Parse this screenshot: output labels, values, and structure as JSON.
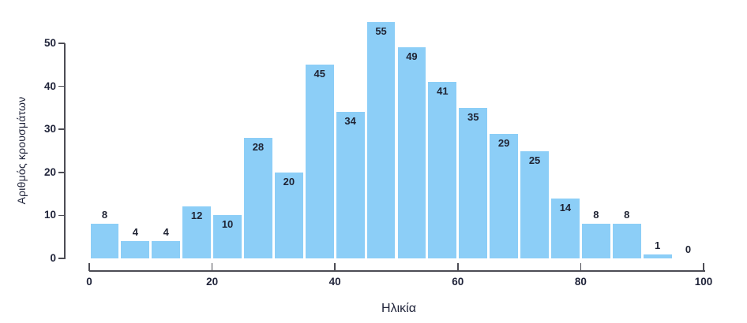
{
  "chart_data": {
    "type": "bar",
    "subtype": "histogram",
    "title": "",
    "xlabel": "Ηλικία",
    "ylabel": "Αριθμός κρουσμάτων",
    "bin_edges": [
      0,
      5,
      10,
      15,
      20,
      25,
      30,
      35,
      40,
      45,
      50,
      55,
      60,
      65,
      70,
      75,
      80,
      85,
      90,
      95,
      100
    ],
    "values": [
      8,
      4,
      4,
      12,
      10,
      28,
      20,
      45,
      34,
      55,
      49,
      41,
      35,
      29,
      25,
      14,
      8,
      8,
      1,
      0
    ],
    "bar_value_labels": [
      "8",
      "4",
      "4",
      "12",
      "10",
      "28",
      "20",
      "45",
      "34",
      "55",
      "49",
      "41",
      "35",
      "29",
      "25",
      "14",
      "8",
      "8",
      "1",
      "0"
    ],
    "x_ticks": [
      0,
      20,
      40,
      60,
      80,
      100
    ],
    "y_ticks": [
      0,
      10,
      20,
      30,
      40,
      50
    ],
    "xlim": [
      0,
      100
    ],
    "ylim": [
      0,
      50
    ],
    "grid": false,
    "legend": null,
    "value_label_inside_threshold": 10,
    "colors": {
      "bar_fill": "#8CCEF7",
      "bar_gap": "#FFFFFF",
      "axis_line": "#4C4C54",
      "tick_label": "#20243A",
      "value_label": "#1F2333",
      "axis_title": "#20243A",
      "background": "#FFFFFF"
    }
  }
}
